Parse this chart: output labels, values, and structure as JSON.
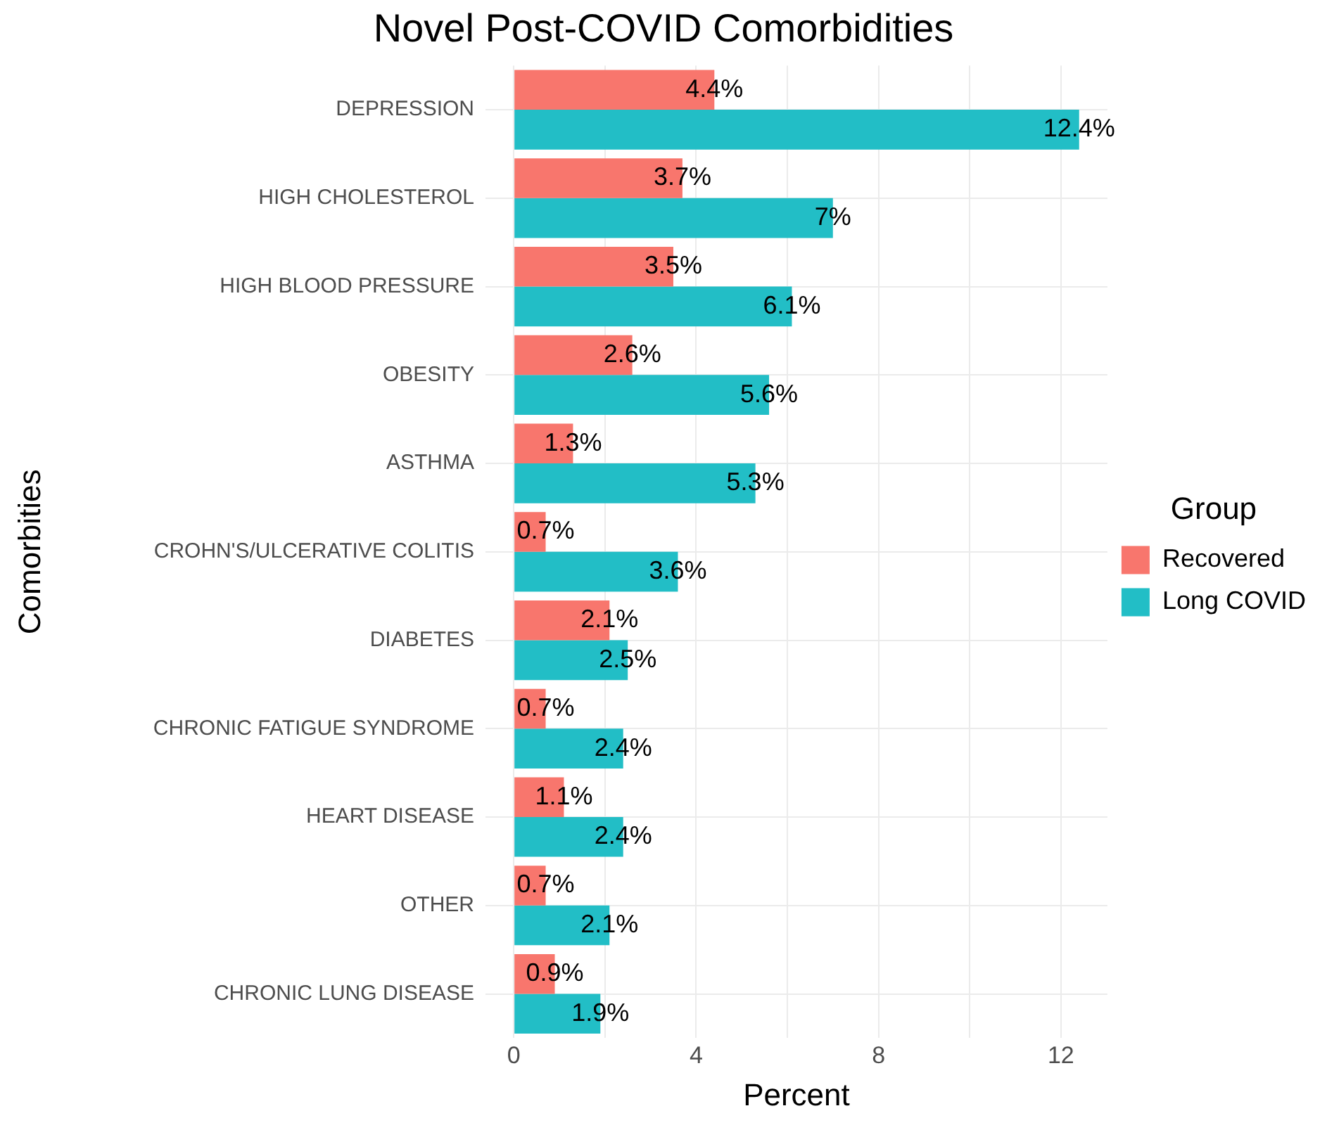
{
  "chart_data": {
    "type": "bar",
    "orientation": "horizontal",
    "title": "Novel Post-COVID Comorbidities",
    "xlabel": "Percent",
    "ylabel": "Comorbities",
    "legend_title": "Group",
    "legend": "right",
    "grid": true,
    "categories": [
      "DEPRESSION",
      "HIGH CHOLESTEROL",
      "HIGH BLOOD PRESSURE",
      "OBESITY",
      "ASTHMA",
      "CROHN'S/ULCERATIVE COLITIS",
      "DIABETES",
      "CHRONIC FATIGUE SYNDROME",
      "HEART DISEASE",
      "OTHER",
      "CHRONIC LUNG DISEASE"
    ],
    "xlim": [
      -0.62,
      13.02
    ],
    "xticks": [
      0,
      {
        "value": 2,
        "label": null
      },
      4,
      {
        "value": 6,
        "label": null
      },
      8,
      {
        "value": 10,
        "label": null
      },
      12
    ],
    "series": [
      {
        "name": "Recovered",
        "color": "#f8766d",
        "values": [
          4.4,
          3.7,
          3.5,
          2.6,
          1.3,
          0.7,
          2.1,
          0.7,
          1.1,
          0.7,
          0.9
        ],
        "value_labels": [
          "4.4%",
          "3.7%",
          "3.5%",
          "2.6%",
          "1.3%",
          "0.7%",
          "2.1%",
          "0.7%",
          "1.1%",
          "0.7%",
          "0.9%"
        ]
      },
      {
        "name": "Long COVID",
        "color": "#22bec6",
        "values": [
          12.4,
          7,
          6.1,
          5.6,
          5.3,
          3.6,
          2.5,
          2.4,
          2.4,
          2.1,
          1.9
        ],
        "value_labels": [
          "12.4%",
          "7%",
          "6.1%",
          "5.6%",
          "5.3%",
          "3.6%",
          "2.5%",
          "2.4%",
          "2.4%",
          "2.1%",
          "1.9%"
        ]
      }
    ]
  }
}
